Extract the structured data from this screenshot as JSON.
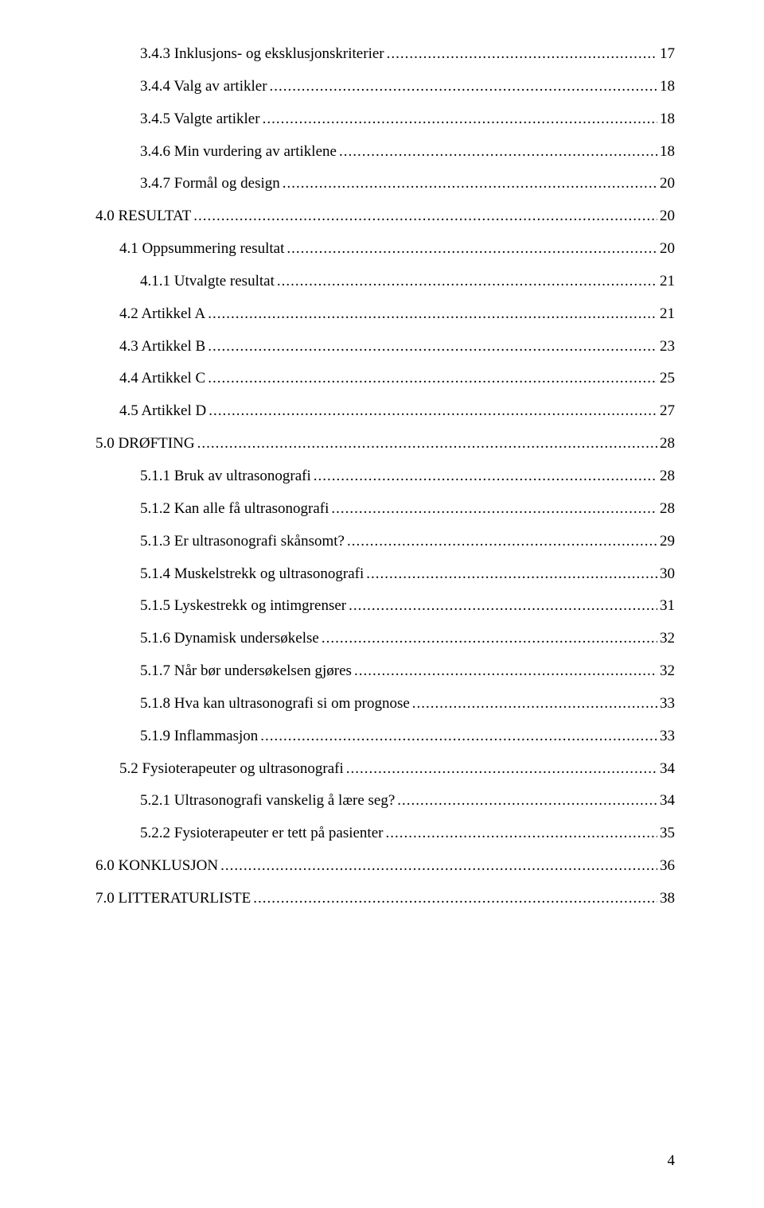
{
  "toc": {
    "entries": [
      {
        "label": "3.4.3 Inklusjons- og eksklusjonskriterier",
        "page": "17",
        "indent": 2
      },
      {
        "label": "3.4.4 Valg av artikler",
        "page": "18",
        "indent": 2
      },
      {
        "label": "3.4.5 Valgte artikler",
        "page": "18",
        "indent": 2
      },
      {
        "label": "3.4.6 Min vurdering av artiklene",
        "page": "18",
        "indent": 2
      },
      {
        "label": "3.4.7 Formål og design",
        "page": "20",
        "indent": 2
      },
      {
        "label": "4.0    RESULTAT",
        "page": "20",
        "indent": 0
      },
      {
        "label": "4.1 Oppsummering resultat",
        "page": "20",
        "indent": 1
      },
      {
        "label": "4.1.1 Utvalgte resultat",
        "page": "21",
        "indent": 2
      },
      {
        "label": "4.2 Artikkel A",
        "page": "21",
        "indent": 1
      },
      {
        "label": "4.3 Artikkel B",
        "page": "23",
        "indent": 1
      },
      {
        "label": "4.4 Artikkel C",
        "page": "25",
        "indent": 1
      },
      {
        "label": "4.5 Artikkel D",
        "page": "27",
        "indent": 1
      },
      {
        "label": "5.0    DRØFTING",
        "page": "28",
        "indent": 0
      },
      {
        "label": "5.1.1 Bruk av ultrasonografi",
        "page": "28",
        "indent": 2
      },
      {
        "label": "5.1.2 Kan alle få ultrasonografi",
        "page": "28",
        "indent": 2
      },
      {
        "label": "5.1.3 Er ultrasonografi skånsomt?",
        "page": "29",
        "indent": 2
      },
      {
        "label": "5.1.4 Muskelstrekk og ultrasonografi",
        "page": "30",
        "indent": 2
      },
      {
        "label": "5.1.5 Lyskestrekk og intimgrenser",
        "page": "31",
        "indent": 2
      },
      {
        "label": "5.1.6 Dynamisk undersøkelse",
        "page": "32",
        "indent": 2
      },
      {
        "label": "5.1.7 Når bør undersøkelsen gjøres",
        "page": "32",
        "indent": 2
      },
      {
        "label": "5.1.8 Hva kan ultrasonografi si om prognose",
        "page": "33",
        "indent": 2
      },
      {
        "label": "5.1.9 Inflammasjon",
        "page": "33",
        "indent": 2
      },
      {
        "label": "5.2  Fysioterapeuter og ultrasonografi",
        "page": "34",
        "indent": 1
      },
      {
        "label": "5.2.1 Ultrasonografi vanskelig å lære seg?",
        "page": "34",
        "indent": 2
      },
      {
        "label": "5.2.2 Fysioterapeuter er tett på pasienter",
        "page": "35",
        "indent": 2
      },
      {
        "label": "6.0    KONKLUSJON",
        "page": "36",
        "indent": 0
      },
      {
        "label": "7.0    LITTERATURLISTE",
        "page": "38",
        "indent": 0
      }
    ]
  },
  "footer": {
    "page_number": "4"
  }
}
